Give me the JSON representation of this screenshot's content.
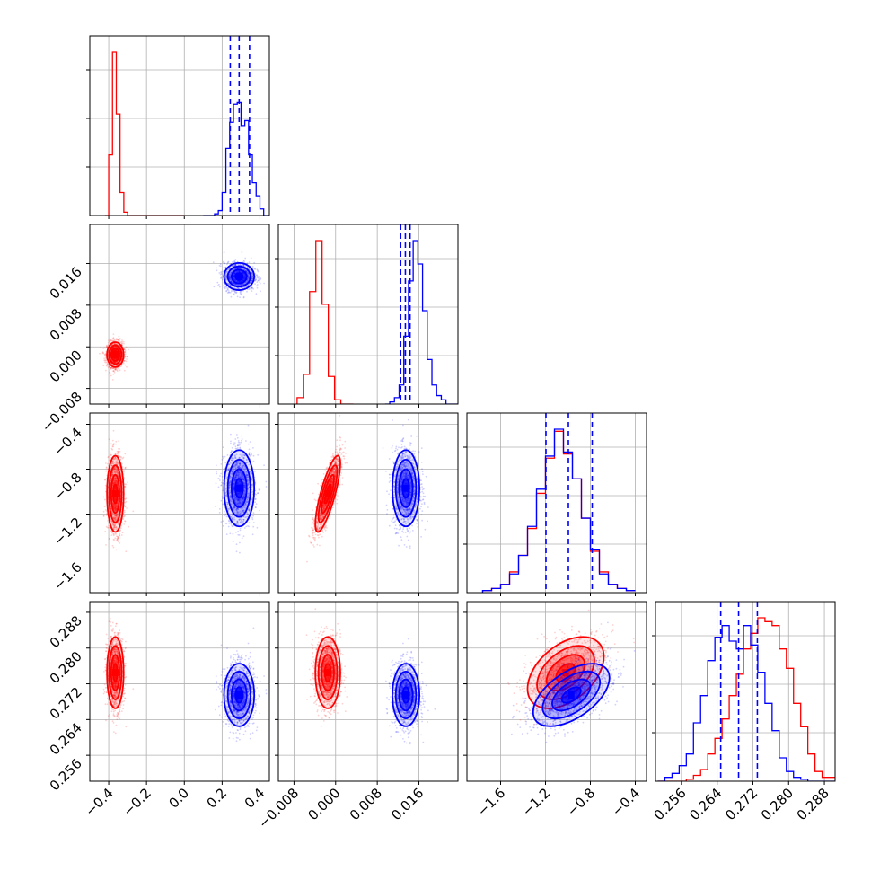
{
  "chart_data": {
    "type": "corner",
    "grid": true,
    "colors": {
      "red": "#ff0000",
      "blue": "#0000ff"
    },
    "parameters": [
      {
        "range": [
          -0.5,
          0.45
        ],
        "ticks": [
          "-0.4",
          "-0.2",
          "0.0",
          "0.2",
          "0.4"
        ],
        "tick_values": [
          -0.4,
          -0.2,
          0.0,
          0.2,
          0.4
        ]
      },
      {
        "range": [
          -0.011,
          0.0235
        ],
        "ticks": [
          "-0.008",
          "0.000",
          "0.008",
          "0.016"
        ],
        "tick_values": [
          -0.008,
          0.0,
          0.008,
          0.016
        ]
      },
      {
        "range": [
          -1.9,
          -0.3
        ],
        "ticks": [
          "-1.6",
          "-1.2",
          "-0.8",
          "-0.4"
        ],
        "tick_values": [
          -1.6,
          -1.2,
          -0.8,
          -0.4
        ]
      },
      {
        "range": [
          0.2502,
          0.2904
        ],
        "ticks": [
          "0.256",
          "0.264",
          "0.272",
          "0.280",
          "0.288"
        ],
        "tick_values": [
          0.256,
          0.264,
          0.272,
          0.28,
          0.288
        ]
      }
    ],
    "series": [
      {
        "color": "red",
        "center": [
          -0.365,
          -0.0015,
          -1.02,
          0.2745
        ],
        "sigma": [
          0.022,
          0.0012,
          0.17,
          0.004
        ],
        "correlations": [
          {
            "pair": [
              1,
              2
            ],
            "rho": 0.8
          },
          {
            "pair": [
              2,
              3
            ],
            "rho": 0.45
          }
        ],
        "quantiles": null,
        "histograms": [
          {
            "bins": [
              -0.42,
              -0.4,
              -0.38,
              -0.36,
              -0.34,
              -0.32,
              -0.3,
              -0.28,
              -0.26,
              -0.24,
              -0.22,
              -0.2,
              -0.18,
              -0.16,
              -0.14,
              -0.12,
              -0.1,
              -0.08,
              -0.06,
              -0.04,
              0.0
            ],
            "counts": [
              0,
              37,
              100,
              62,
              14,
              2,
              0,
              0,
              0,
              0,
              0,
              0,
              0,
              0,
              0,
              0,
              0,
              0,
              0,
              0
            ]
          },
          {
            "bins": [
              -0.0074,
              -0.0062,
              -0.005,
              -0.0038,
              -0.0026,
              -0.0014,
              -0.0002,
              0.001,
              0.0022,
              0.0034
            ],
            "counts": [
              3,
              14,
              53,
              77,
              47,
              13,
              2,
              0,
              0
            ]
          },
          {
            "bins": [
              -1.76,
              -1.68,
              -1.6,
              -1.52,
              -1.44,
              -1.36,
              -1.28,
              -1.2,
              -1.12,
              -1.04,
              -0.96,
              -0.88,
              -0.8,
              -0.72,
              -0.64,
              -0.56,
              -0.48,
              -0.4
            ],
            "counts": [
              1,
              2,
              4,
              10,
              18,
              31,
              48,
              65,
              78,
              67,
              55,
              36,
              20,
              10,
              4,
              2,
              1
            ]
          },
          {
            "bins": [
              0.2507,
              0.2523,
              0.2539,
              0.2555,
              0.2571,
              0.2587,
              0.2603,
              0.2619,
              0.2635,
              0.2651,
              0.2667,
              0.2683,
              0.2699,
              0.2715,
              0.2731,
              0.2747,
              0.2763,
              0.2779,
              0.2795,
              0.2811,
              0.2827,
              0.2843,
              0.2859,
              0.2875,
              0.2904
            ],
            "counts": [
              0,
              0,
              0,
              0,
              1,
              3,
              6,
              14,
              22,
              32,
              44,
              55,
              68,
              76,
              84,
              82,
              80,
              68,
              58,
              40,
              28,
              14,
              5,
              2
            ]
          }
        ]
      },
      {
        "color": "blue",
        "center": [
          0.29,
          0.0135,
          -0.97,
          0.2695
        ],
        "sigma": [
          0.04,
          0.0013,
          0.17,
          0.0035
        ],
        "correlations": [
          {
            "pair": [
              2,
              3
            ],
            "rho": 0.55
          }
        ],
        "quantiles": [
          [
            0.243,
            0.29,
            0.345
          ],
          [
            0.0125,
            0.0134,
            0.0143
          ],
          [
            -1.196,
            -0.996,
            -0.784
          ],
          [
            0.2648,
            0.2688,
            0.273
          ]
        ],
        "histograms": [
          {
            "bins": [
              0.1,
              0.16,
              0.18,
              0.2,
              0.22,
              0.24,
              0.26,
              0.28,
              0.3,
              0.32,
              0.34,
              0.36,
              0.38,
              0.4,
              0.42,
              0.45
            ],
            "counts": [
              0,
              1,
              3,
              14,
              41,
              57,
              68,
              69,
              55,
              58,
              37,
              20,
              12,
              4,
              0
            ]
          },
          {
            "bins": [
              0.0095,
              0.0104,
              0.0113,
              0.0122,
              0.0131,
              0.014,
              0.0149,
              0.0158,
              0.0167,
              0.0176,
              0.0185,
              0.0194,
              0.0203,
              0.0212,
              0.0221,
              0.0235
            ],
            "counts": [
              0,
              1,
              3,
              9,
              32,
              58,
              77,
              66,
              44,
              21,
              9,
              4,
              2,
              0,
              0
            ]
          },
          {
            "bins": [
              -1.76,
              -1.68,
              -1.6,
              -1.52,
              -1.44,
              -1.36,
              -1.28,
              -1.2,
              -1.12,
              -1.04,
              -0.96,
              -0.88,
              -0.8,
              -0.72,
              -0.64,
              -0.56,
              -0.48,
              -0.4
            ],
            "counts": [
              1,
              2,
              4,
              9,
              18,
              32,
              50,
              66,
              79,
              68,
              55,
              36,
              21,
              9,
              4,
              2,
              1
            ]
          },
          {
            "bins": [
              0.2507,
              0.2523,
              0.2539,
              0.2555,
              0.2571,
              0.2587,
              0.2603,
              0.2619,
              0.2635,
              0.2651,
              0.2667,
              0.2683,
              0.2699,
              0.2715,
              0.2731,
              0.2747,
              0.2763,
              0.2779,
              0.2795,
              0.2811,
              0.2827,
              0.2843,
              0.2859,
              0.2875,
              0.2904
            ],
            "counts": [
              0,
              2,
              4,
              8,
              14,
              30,
              44,
              62,
              74,
              80,
              72,
              68,
              80,
              70,
              56,
              40,
              26,
              12,
              5,
              2,
              1,
              0,
              0,
              0
            ]
          }
        ]
      }
    ]
  }
}
